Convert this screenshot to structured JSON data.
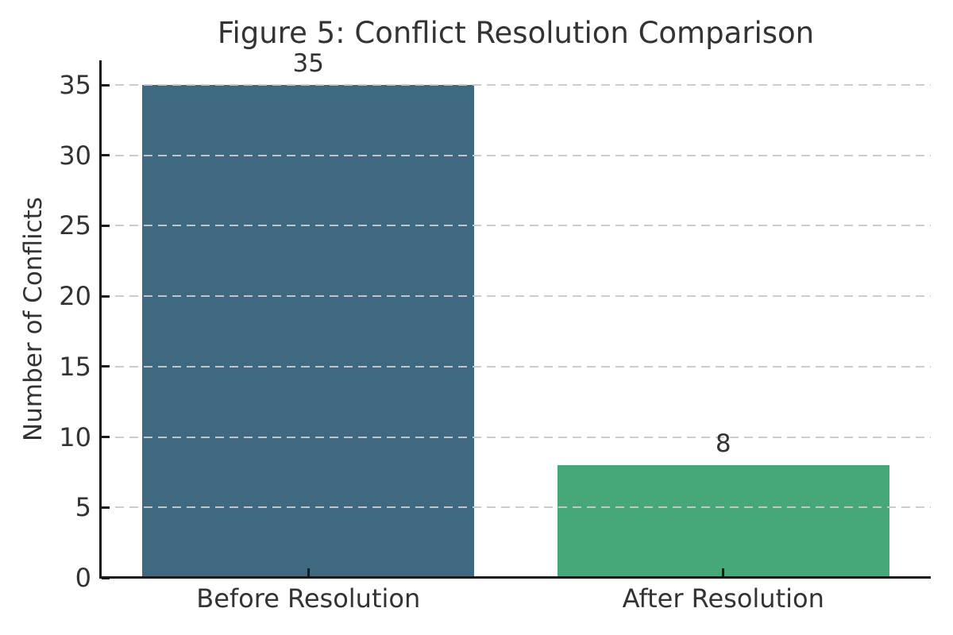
{
  "chart_data": {
    "type": "bar",
    "title": "Figure 5: Conflict Resolution Comparison",
    "categories": [
      "Before Resolution",
      "After Resolution"
    ],
    "values": [
      35,
      8
    ],
    "value_labels": [
      "35",
      "8"
    ],
    "bar_colors": [
      "#3f6881",
      "#46a878"
    ],
    "xlabel": "",
    "ylabel": "Number of Conflicts",
    "yticks": [
      0,
      5,
      10,
      15,
      20,
      25,
      30,
      35
    ],
    "ylim": [
      0,
      36.75
    ],
    "bar_width_fraction": 0.8,
    "grid": "horizontal-dashed",
    "grid_on_top_of_bars": true,
    "legend": "none",
    "text_color": "#333333",
    "axis_color": "#1a1a1a",
    "grid_color": "#c9c9c9",
    "background_color": "#ffffff"
  }
}
